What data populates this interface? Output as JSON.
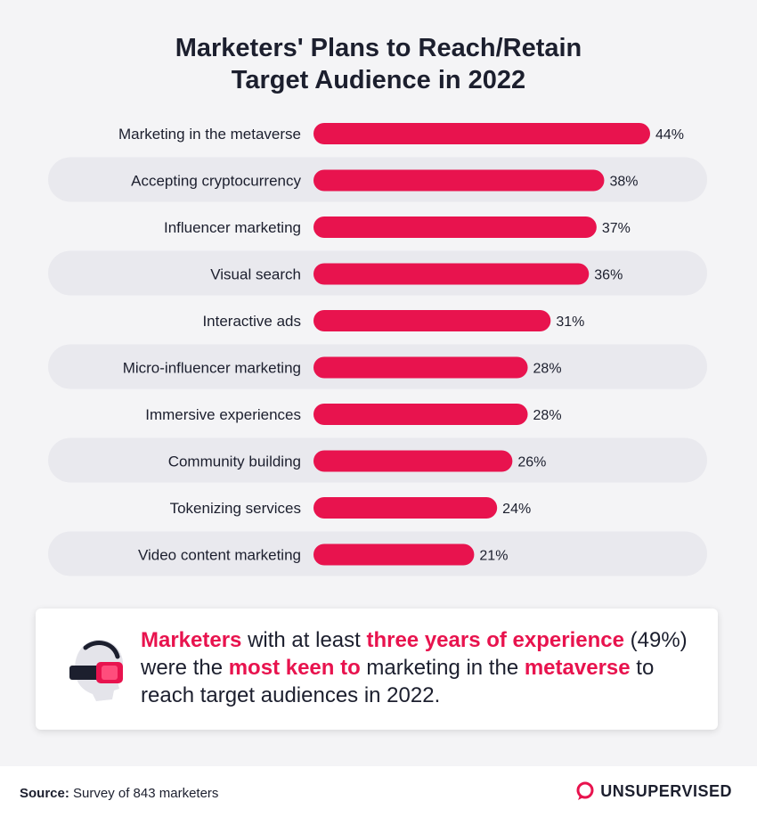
{
  "chart_data": {
    "type": "bar",
    "orientation": "horizontal",
    "title_lines": [
      "Marketers' Plans to Reach/Retain",
      "Target Audience in 2022"
    ],
    "categories": [
      "Marketing in the metaverse",
      "Accepting cryptocurrency",
      "Influencer marketing",
      "Visual search",
      "Interactive ads",
      "Micro-influencer marketing",
      "Immersive experiences",
      "Community building",
      "Tokenizing services",
      "Video content marketing"
    ],
    "values": [
      44,
      38,
      37,
      36,
      31,
      28,
      28,
      26,
      24,
      21
    ],
    "value_labels": [
      "44%",
      "38%",
      "37%",
      "36%",
      "31%",
      "28%",
      "28%",
      "26%",
      "24%",
      "21%"
    ],
    "unit": "%",
    "xlim": [
      0,
      44
    ]
  },
  "callout": {
    "part1": "Marketers",
    "part2": " with at least ",
    "part3": "three years of experience",
    "part4": " (49%) were the ",
    "part5": "most keen to",
    "part6": " marketing in the ",
    "part7": "metaverse",
    "part8": " to reach target audiences in 2022."
  },
  "footer": {
    "source_label": "Source:",
    "source_text": " Survey of 843 marketers",
    "brand": "UNSUPERVISED"
  },
  "colors": {
    "bar": "#e8134e",
    "stripe": "#e9e9ee",
    "background": "#f4f4f6",
    "highlight": "#e8134e",
    "text": "#1c1f2e"
  }
}
